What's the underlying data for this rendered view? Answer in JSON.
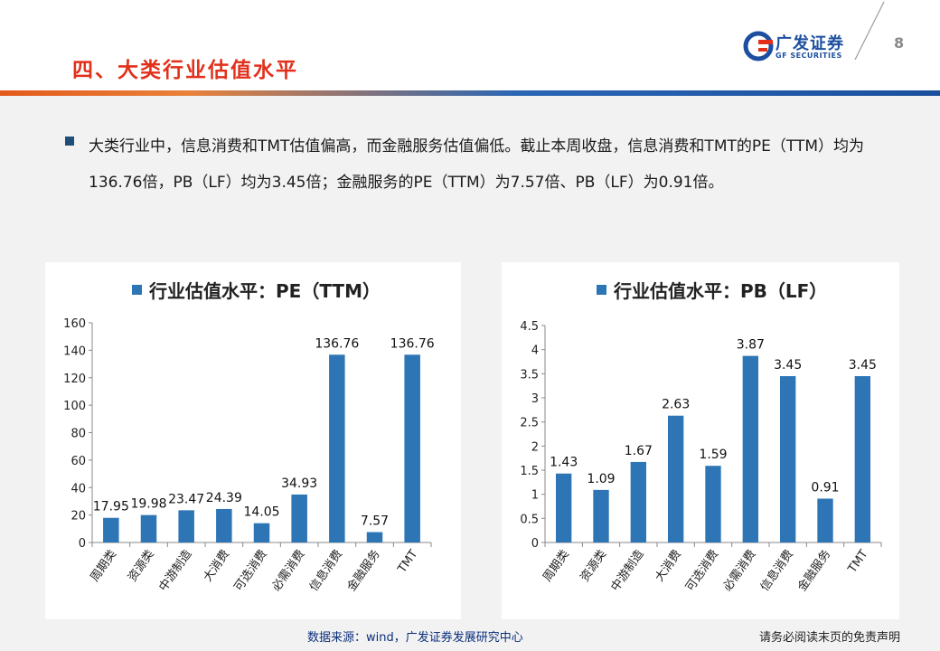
{
  "header": {
    "title": "四、大类行业估值水平",
    "logo_cn": "广发证券",
    "logo_en": "GF SECURITIES",
    "page_number": "8"
  },
  "summary": {
    "text": "大类行业中，信息消费和TMT估值偏高，而金融服务估值偏低。截止本周收盘，信息消费和TMT的PE（TTM）均为136.76倍，PB（LF）均为3.45倍；金融服务的PE（TTM）为7.57倍、PB（LF）为0.91倍。"
  },
  "colors": {
    "bar": "#2e75b6",
    "accent": "#e2301b",
    "brand": "#1c4f9f"
  },
  "chart_data": [
    {
      "type": "bar",
      "title": "行业估值水平：PE（TTM）",
      "categories": [
        "周期类",
        "资源类",
        "中游制造",
        "大消费",
        "可选消费",
        "必需消费",
        "信息消费",
        "金融服务",
        "TMT"
      ],
      "values": [
        17.95,
        19.98,
        23.47,
        24.39,
        14.05,
        34.93,
        136.76,
        7.57,
        136.76
      ],
      "labels": [
        "17.95",
        "19.98",
        "23.47",
        "24.39",
        "14.05",
        "34.93",
        "136.76",
        "7.57",
        "136.76"
      ],
      "ylim": [
        0,
        160
      ],
      "yticks": [
        "0",
        "20",
        "40",
        "60",
        "80",
        "100",
        "120",
        "140",
        "160"
      ],
      "legend": "top"
    },
    {
      "type": "bar",
      "title": "行业估值水平：PB（LF）",
      "categories": [
        "周期类",
        "资源类",
        "中游制造",
        "大消费",
        "可选消费",
        "必需消费",
        "信息消费",
        "金融服务",
        "TMT"
      ],
      "values": [
        1.43,
        1.09,
        1.67,
        2.63,
        1.59,
        3.87,
        3.45,
        0.91,
        3.45
      ],
      "labels": [
        "1.43",
        "1.09",
        "1.67",
        "2.63",
        "1.59",
        "3.87",
        "3.45",
        "0.91",
        "3.45"
      ],
      "ylim": [
        0,
        4.5
      ],
      "yticks": [
        "0",
        "0.5",
        "1",
        "1.5",
        "2",
        "2.5",
        "3",
        "3.5",
        "4",
        "4.5"
      ],
      "legend": "top"
    }
  ],
  "footer": {
    "source": "数据来源：wind，广发证券发展研究中心",
    "disclaimer": "请务必阅读末页的免责声明"
  }
}
